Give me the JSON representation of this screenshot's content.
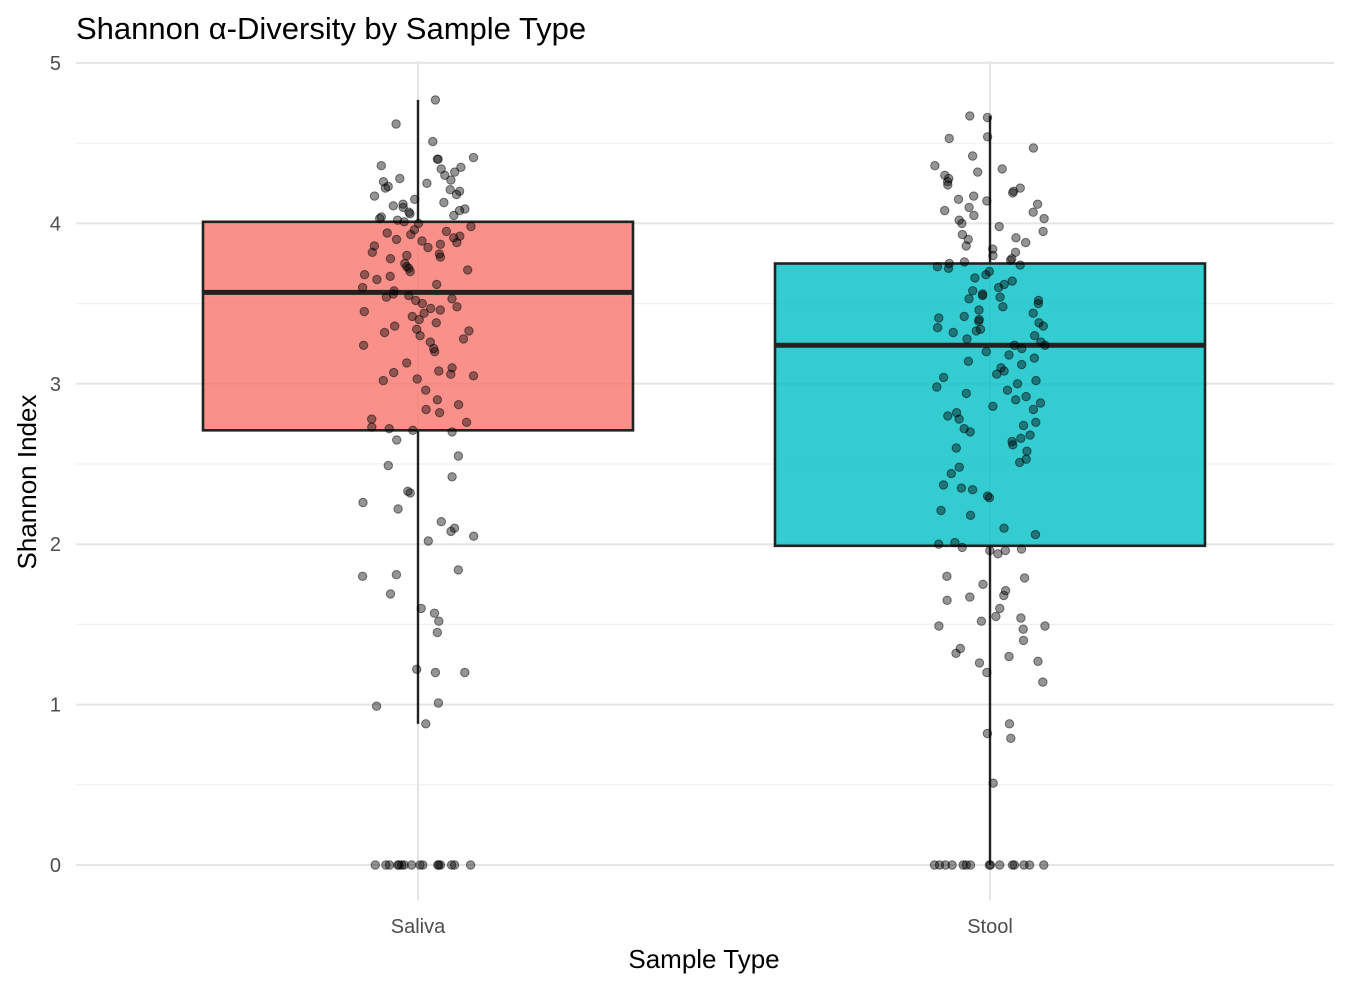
{
  "chart_data": {
    "type": "box",
    "title": "Shannon α-Diversity by Sample Type",
    "xlabel": "Sample Type",
    "ylabel": "Shannon Index",
    "ylim": [
      -0.2,
      5
    ],
    "yticks": [
      0,
      1,
      2,
      3,
      4,
      5
    ],
    "grid": true,
    "legend": "none",
    "categories": [
      "Saliva",
      "Stool"
    ],
    "boxes": [
      {
        "category": "Saliva",
        "color": "#F8766D",
        "q1": 2.71,
        "median": 3.57,
        "q3": 4.01,
        "whisker_low": 0.88,
        "whisker_high": 4.77,
        "points": [
          4.77,
          4.62,
          4.51,
          4.41,
          4.4,
          4.4,
          4.36,
          4.35,
          4.34,
          4.32,
          4.3,
          4.28,
          4.27,
          4.26,
          4.25,
          4.23,
          4.22,
          4.21,
          4.2,
          4.18,
          4.17,
          4.15,
          4.13,
          4.12,
          4.11,
          4.1,
          4.09,
          4.08,
          4.07,
          4.06,
          4.05,
          4.04,
          4.03,
          4.02,
          4.01,
          4.0,
          3.98,
          3.96,
          3.95,
          3.94,
          3.93,
          3.92,
          3.91,
          3.9,
          3.89,
          3.88,
          3.87,
          3.86,
          3.85,
          3.82,
          3.81,
          3.8,
          3.79,
          3.78,
          3.75,
          3.73,
          3.72,
          3.71,
          3.7,
          3.68,
          3.67,
          3.65,
          3.62,
          3.6,
          3.58,
          3.56,
          3.55,
          3.54,
          3.53,
          3.52,
          3.5,
          3.48,
          3.47,
          3.46,
          3.45,
          3.44,
          3.42,
          3.4,
          3.38,
          3.36,
          3.34,
          3.33,
          3.32,
          3.3,
          3.28,
          3.26,
          3.24,
          3.22,
          3.2,
          3.13,
          3.1,
          3.08,
          3.07,
          3.06,
          3.05,
          3.03,
          3.02,
          2.96,
          2.9,
          2.87,
          2.84,
          2.82,
          2.78,
          2.76,
          2.73,
          2.72,
          2.71,
          2.7,
          2.65,
          2.55,
          2.49,
          2.42,
          2.33,
          2.32,
          2.26,
          2.22,
          2.14,
          2.1,
          2.08,
          2.05,
          2.02,
          1.84,
          1.81,
          1.8,
          1.69,
          1.6,
          1.57,
          1.52,
          1.45,
          1.22,
          1.2,
          1.2,
          1.01,
          0.99,
          0.88,
          0,
          0,
          0,
          0,
          0,
          0,
          0,
          0,
          0,
          0,
          0,
          0,
          0,
          0,
          0,
          0
        ]
      },
      {
        "category": "Stool",
        "color": "#00BFC4",
        "q1": 1.99,
        "median": 3.24,
        "q3": 3.75,
        "whisker_low": 0,
        "whisker_high": 4.67,
        "points": [
          4.67,
          4.66,
          4.54,
          4.53,
          4.47,
          4.42,
          4.36,
          4.34,
          4.32,
          4.3,
          4.28,
          4.26,
          4.24,
          4.22,
          4.2,
          4.19,
          4.17,
          4.15,
          4.14,
          4.12,
          4.1,
          4.08,
          4.07,
          4.05,
          4.03,
          4.02,
          4.0,
          3.98,
          3.95,
          3.93,
          3.91,
          3.9,
          3.88,
          3.86,
          3.84,
          3.82,
          3.8,
          3.78,
          3.77,
          3.76,
          3.75,
          3.74,
          3.73,
          3.72,
          3.7,
          3.68,
          3.66,
          3.64,
          3.62,
          3.6,
          3.58,
          3.56,
          3.55,
          3.54,
          3.53,
          3.52,
          3.5,
          3.48,
          3.46,
          3.44,
          3.42,
          3.41,
          3.4,
          3.39,
          3.38,
          3.36,
          3.35,
          3.34,
          3.33,
          3.32,
          3.3,
          3.28,
          3.26,
          3.24,
          3.24,
          3.22,
          3.2,
          3.18,
          3.16,
          3.14,
          3.12,
          3.1,
          3.08,
          3.06,
          3.04,
          3.02,
          3.0,
          2.98,
          2.96,
          2.94,
          2.92,
          2.9,
          2.88,
          2.86,
          2.84,
          2.82,
          2.8,
          2.78,
          2.76,
          2.74,
          2.72,
          2.7,
          2.68,
          2.66,
          2.64,
          2.62,
          2.6,
          2.58,
          2.53,
          2.51,
          2.48,
          2.44,
          2.37,
          2.35,
          2.34,
          2.3,
          2.29,
          2.21,
          2.18,
          2.1,
          2.06,
          2.01,
          2.0,
          1.98,
          1.97,
          1.96,
          1.96,
          1.94,
          1.8,
          1.79,
          1.75,
          1.71,
          1.68,
          1.67,
          1.65,
          1.6,
          1.55,
          1.54,
          1.52,
          1.49,
          1.49,
          1.47,
          1.4,
          1.35,
          1.32,
          1.3,
          1.27,
          1.26,
          1.2,
          1.14,
          0.88,
          0.82,
          0.79,
          0.51,
          0,
          0,
          0,
          0,
          0,
          0,
          0,
          0,
          0,
          0,
          0,
          0,
          0,
          0,
          0
        ]
      }
    ]
  }
}
